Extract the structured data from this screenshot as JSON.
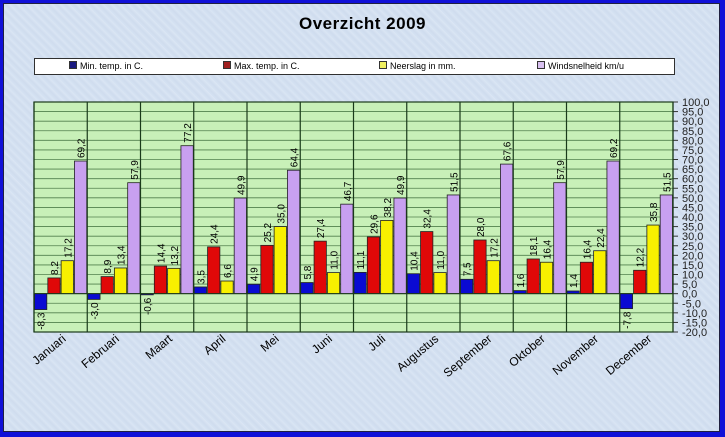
{
  "chart_data": {
    "type": "bar",
    "title": "Overzicht 2009",
    "xlabel": "",
    "ylabel": "",
    "ylim": [
      -20,
      100
    ],
    "ytick_step": 5,
    "yticks": [
      "100,0",
      "95,0",
      "90,0",
      "85,0",
      "80,0",
      "75,0",
      "70,0",
      "65,0",
      "60,0",
      "55,0",
      "50,0",
      "45,0",
      "40,0",
      "35,0",
      "30,0",
      "25,0",
      "20,0",
      "15,0",
      "10,0",
      "5,0",
      "0,0",
      "-5,0",
      "-10,0",
      "-15,0",
      "-20,0"
    ],
    "ytick_values": [
      100,
      95,
      90,
      85,
      80,
      75,
      70,
      65,
      60,
      55,
      50,
      45,
      40,
      35,
      30,
      25,
      20,
      15,
      10,
      5,
      0,
      -5,
      -10,
      -15,
      -20
    ],
    "grid": true,
    "legend_position": "top",
    "categories": [
      "Januari",
      "Februari",
      "Maart",
      "April",
      "Mei",
      "Juni",
      "Juli",
      "Augustus",
      "September",
      "Oktober",
      "November",
      "December"
    ],
    "series": [
      {
        "name": "Min. temp. in C.",
        "color": "#0a0ad2",
        "values": [
          -8.3,
          -3.0,
          -0.6,
          3.5,
          4.9,
          5.8,
          11.1,
          10.4,
          7.5,
          1.6,
          1.4,
          -7.8
        ],
        "labels": [
          "-8,3",
          "-3,0",
          "-0,6",
          "3,5",
          "4,9",
          "5,8",
          "11,1",
          "10,4",
          "7,5",
          "1,6",
          "1,4",
          "-7,8"
        ]
      },
      {
        "name": "Max. temp. in C.",
        "color": "#e00808",
        "values": [
          8.2,
          8.9,
          14.4,
          24.4,
          25.2,
          27.4,
          29.6,
          32.4,
          28.0,
          18.1,
          16.4,
          12.2
        ],
        "labels": [
          "8,2",
          "8,9",
          "14,4",
          "24,4",
          "25,2",
          "27,4",
          "29,6",
          "32,4",
          "28,0",
          "18,1",
          "16,4",
          "12,2"
        ]
      },
      {
        "name": "Neerslag in mm.",
        "color": "#f8f000",
        "values": [
          17.2,
          13.4,
          13.2,
          6.6,
          35.0,
          11.0,
          38.2,
          11.0,
          17.2,
          16.4,
          22.4,
          35.8
        ],
        "labels": [
          "17,2",
          "13,4",
          "13,2",
          "6,6",
          "35,0",
          "11,0",
          "38,2",
          "11,0",
          "17,2",
          "16,4",
          "22,4",
          "35,8"
        ]
      },
      {
        "name": "Windsnelheid km/u",
        "color": "#c8a0f0",
        "values": [
          69.2,
          57.9,
          77.2,
          49.9,
          64.4,
          46.7,
          49.9,
          51.5,
          67.6,
          57.9,
          69.2,
          51.5
        ],
        "labels": [
          "69,2",
          "57,9",
          "77,2",
          "49,9",
          "64,4",
          "46,7",
          "49,9",
          "51,5",
          "67,6",
          "57,9",
          "69,2",
          "51,5"
        ]
      }
    ]
  },
  "colors": {
    "plot_bg": "#c8f0b8",
    "gridline": "#2a5a2a",
    "frame": "#1010d8"
  }
}
